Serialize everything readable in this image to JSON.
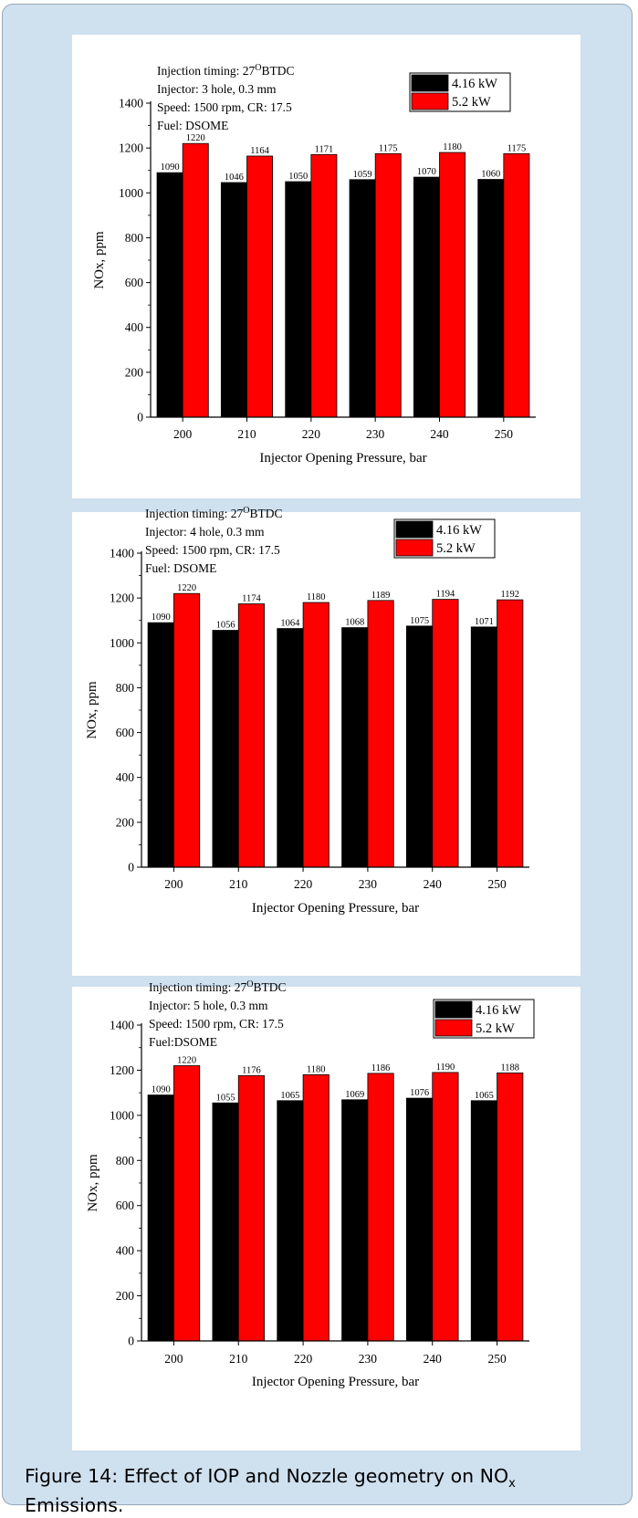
{
  "figure_caption": {
    "text": "Figure 14: Effect of IOP and Nozzle geometry on NO",
    "subscript": "x",
    "tail": " Emissions."
  },
  "colors": {
    "series_1": "#000000",
    "series_2": "#ff0000",
    "panel_bg": "#ffffff",
    "frame_bg": "#cfe0ef"
  },
  "chart_data": [
    {
      "type": "bar",
      "annotations": [
        "Injection timing: 27",
        "Injector: 3 hole, 0.3 mm",
        "Speed: 1500 rpm, CR: 17.5",
        "Fuel: DSOME"
      ],
      "superscript": "O",
      "annotation_suffix": "BTDC",
      "xlabel": "Injector Opening Pressure, bar",
      "ylabel": "NOx, ppm",
      "categories": [
        "200",
        "210",
        "220",
        "230",
        "240",
        "250"
      ],
      "yticks": [
        "0",
        "200",
        "400",
        "600",
        "800",
        "1000",
        "1200",
        "1400"
      ],
      "ylim": [
        0,
        1400
      ],
      "legend_position": "top-right",
      "series": [
        {
          "name": "4.16 kW",
          "values": [
            1090,
            1046,
            1050,
            1059,
            1070,
            1060
          ],
          "labels": [
            "1090",
            "1046",
            "1050",
            "1059",
            "1070",
            "1060"
          ]
        },
        {
          "name": "5.2 kW",
          "values": [
            1220,
            1164,
            1171,
            1175,
            1180,
            1175
          ],
          "labels": [
            "1220",
            "1164",
            "1171",
            "1175",
            "1180",
            "1175"
          ]
        }
      ]
    },
    {
      "type": "bar",
      "annotations": [
        "Injection timing: 27",
        "Injector: 4 hole, 0.3 mm",
        "Speed: 1500 rpm, CR: 17.5",
        "Fuel: DSOME"
      ],
      "superscript": "O",
      "annotation_suffix": "BTDC",
      "xlabel": "Injector Opening Pressure, bar",
      "ylabel": "NOx, ppm",
      "categories": [
        "200",
        "210",
        "220",
        "230",
        "240",
        "250"
      ],
      "yticks": [
        "0",
        "200",
        "400",
        "600",
        "800",
        "1000",
        "1200",
        "1400"
      ],
      "ylim": [
        0,
        1400
      ],
      "legend_position": "top-right",
      "series": [
        {
          "name": "4.16 kW",
          "values": [
            1090,
            1056,
            1064,
            1068,
            1075,
            1071
          ],
          "labels": [
            "1090",
            "1056",
            "1064",
            "1068",
            "1075",
            "1071"
          ]
        },
        {
          "name": "5.2 kW",
          "values": [
            1220,
            1174,
            1180,
            1189,
            1194,
            1192
          ],
          "labels": [
            "1220",
            "1174",
            "1180",
            "1189",
            "1194",
            "1192"
          ]
        }
      ]
    },
    {
      "type": "bar",
      "annotations": [
        "Injection timing: 27",
        "Injector: 5 hole, 0.3 mm",
        "Speed: 1500 rpm, CR: 17.5",
        "Fuel:DSOME"
      ],
      "superscript": "O",
      "annotation_suffix": "BTDC",
      "xlabel": "Injector Opening Pressure, bar",
      "ylabel": "NOx, ppm",
      "categories": [
        "200",
        "210",
        "220",
        "230",
        "240",
        "250"
      ],
      "yticks": [
        "0",
        "200",
        "400",
        "600",
        "800",
        "1000",
        "1200",
        "1400"
      ],
      "ylim": [
        0,
        1400
      ],
      "legend_position": "top-right",
      "series": [
        {
          "name": "4.16 kW",
          "values": [
            1090,
            1055,
            1065,
            1069,
            1076,
            1065
          ],
          "labels": [
            "1090",
            "1055",
            "1065",
            "1069",
            "1076",
            "1065"
          ]
        },
        {
          "name": "5.2 kW",
          "values": [
            1220,
            1176,
            1180,
            1186,
            1190,
            1188
          ],
          "labels": [
            "1220",
            "1176",
            "1180",
            "1186",
            "1190",
            "1188"
          ]
        }
      ]
    }
  ]
}
